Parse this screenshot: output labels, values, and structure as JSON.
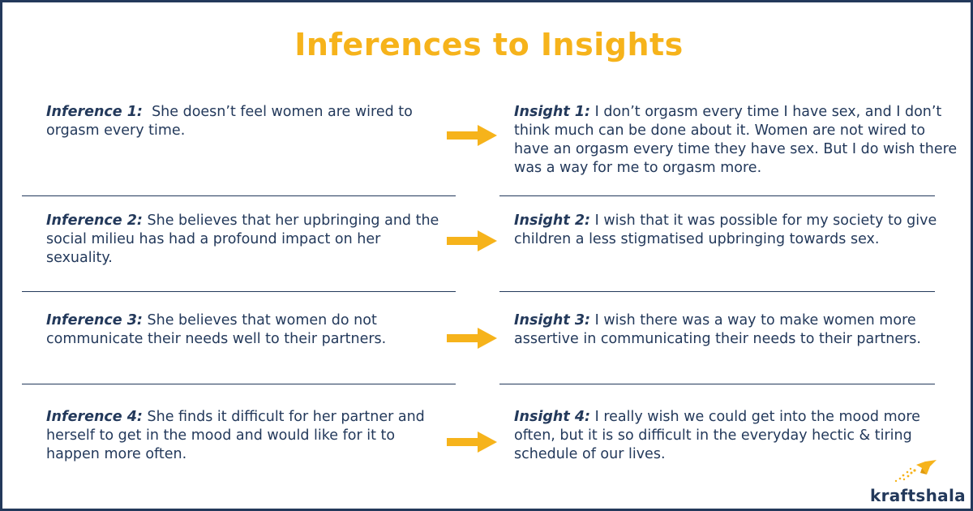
{
  "title": "Inferences to Insights",
  "colors": {
    "accent": "#f6b31b",
    "text": "#23395b",
    "border": "#23395b"
  },
  "rows": [
    {
      "inference_label": "Inference 1:",
      "inference_text": "She doesn’t feel women are wired to orgasm every time.",
      "insight_label": "Insight 1:",
      "insight_text": "I don’t orgasm every time I have sex, and I don’t think much can be done about it. Women are not wired to have an orgasm every time they have sex. But I do wish there was a way for me to orgasm more."
    },
    {
      "inference_label": "Inference 2:",
      "inference_text": "She believes that her upbringing and the social milieu has had a profound impact on her sexuality.",
      "insight_label": "Insight 2:",
      "insight_text": "I wish that it was possible for my society to give children a less stigmatised upbringing towards sex."
    },
    {
      "inference_label": "Inference 3:",
      "inference_text": "She believes that women do not communicate their needs well to their partners.",
      "insight_label": "Insight 3:",
      "insight_text": "I wish there was a way to make women more assertive in communicating their needs to their partners."
    },
    {
      "inference_label": "Inference 4:",
      "inference_text": "She finds it difficult for her partner and herself to get in the mood and would like for it to happen more often.",
      "insight_label": "Insight 4:",
      "insight_text": "I really wish we could get into the mood more often, but it is so difficult in the everyday hectic & tiring schedule of our lives."
    }
  ],
  "logo": {
    "text": "kraftshala",
    "icon": "bird-icon"
  },
  "arrow_icon": "right-arrow-icon"
}
